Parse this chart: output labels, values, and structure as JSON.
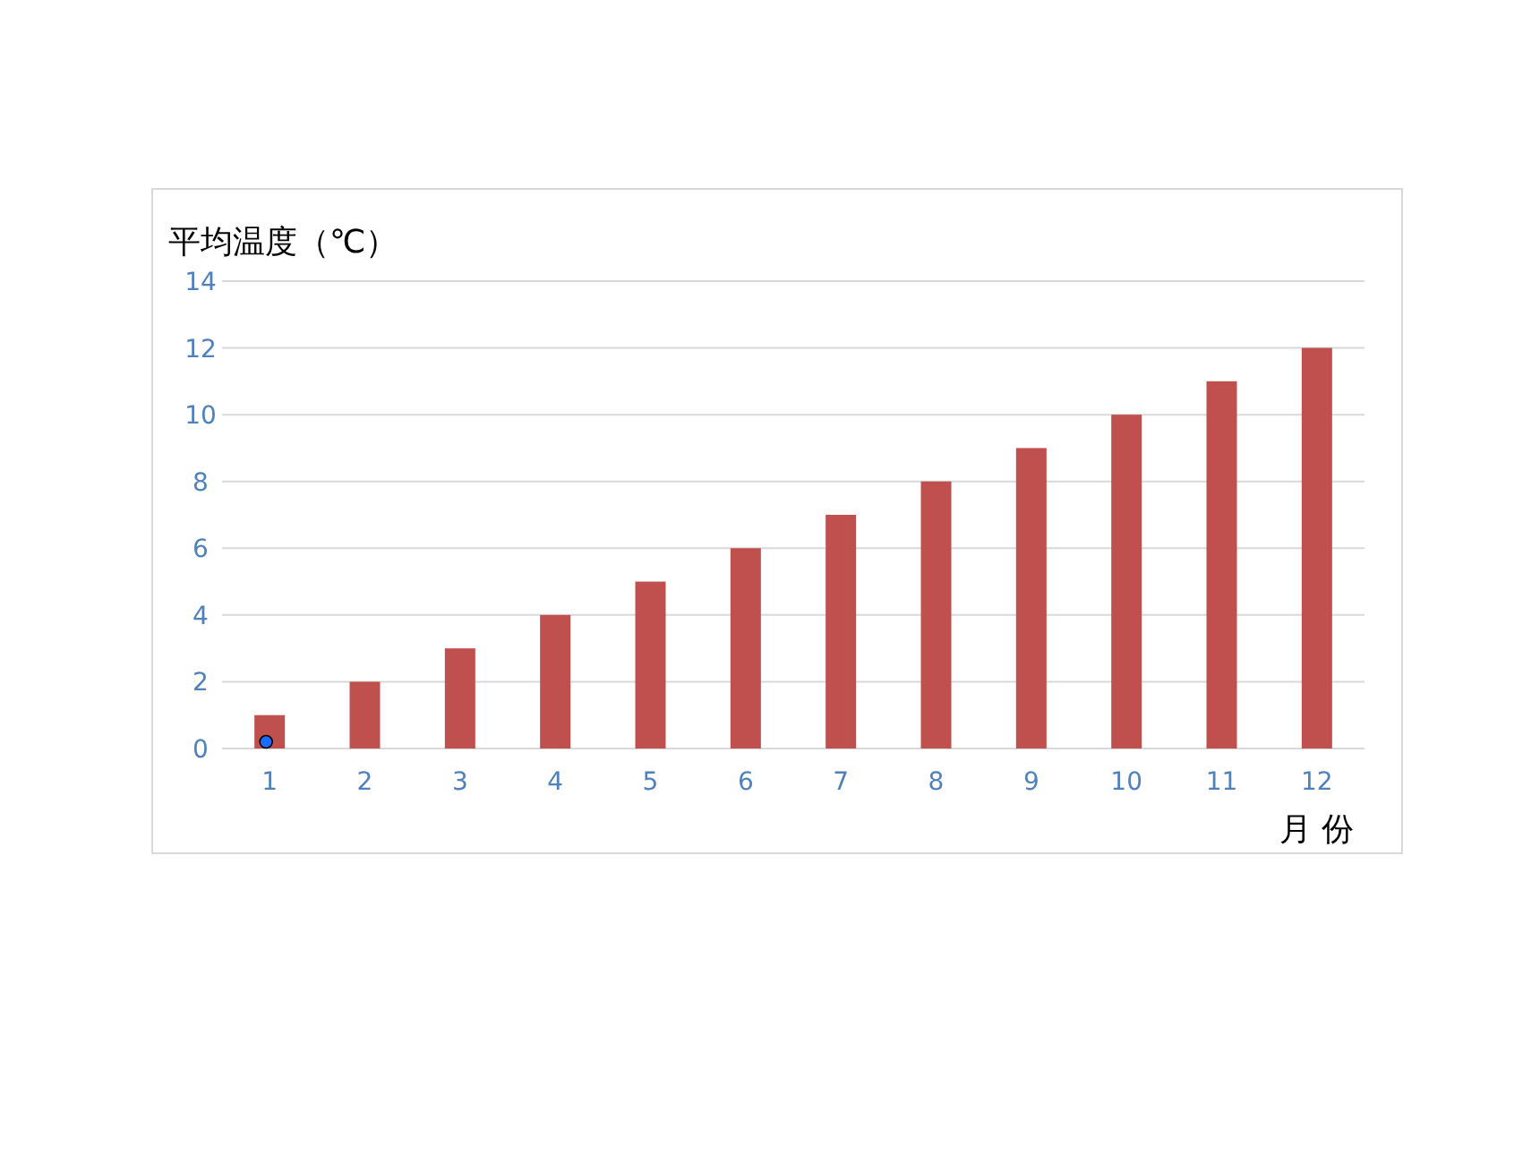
{
  "chart_data": {
    "type": "bar",
    "ylabel": "平均温度（℃）",
    "xlabel": "月 份",
    "categories": [
      "1",
      "2",
      "3",
      "4",
      "5",
      "6",
      "7",
      "8",
      "9",
      "10",
      "11",
      "12"
    ],
    "series": [
      {
        "color": "#c0504d",
        "values": [
          1,
          2,
          3,
          4,
          5,
          6,
          7,
          8,
          9,
          10,
          11,
          12
        ]
      },
      {
        "type": "scatter",
        "color": "#1a6cff",
        "x": [
          "1"
        ],
        "values": [
          0.2
        ]
      }
    ],
    "ylim": [
      0,
      14
    ],
    "yticks": [
      0,
      2,
      4,
      6,
      8,
      10,
      12,
      14
    ],
    "grid": "y",
    "marker": "circle"
  }
}
